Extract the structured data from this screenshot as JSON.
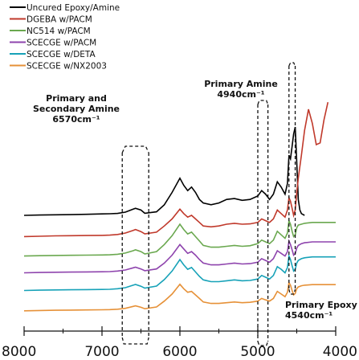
{
  "chart_data": {
    "type": "line",
    "title": "",
    "xlabel": "",
    "ylabel": "",
    "xlim": [
      8000,
      4000
    ],
    "x_reversed": true,
    "x_ticks": [
      "8000",
      "7000",
      "6000",
      "5000",
      "4000"
    ],
    "legend": {
      "placement": "top-left",
      "entries": [
        {
          "name": "Uncured Epoxy/Amine",
          "color": "#000000"
        },
        {
          "name": "DGEBA w/PACM",
          "color": "#c0392b"
        },
        {
          "name": "NC514 w/PACM",
          "color": "#6aa84f"
        },
        {
          "name": "SCECGE w/PACM",
          "color": "#8e44ad"
        },
        {
          "name": "SCECGE w/DETA",
          "color": "#17a2b8"
        },
        {
          "name": "SCECGE w/NX2003",
          "color": "#e69138"
        }
      ]
    },
    "annotations": [
      {
        "lines": [
          "Primary and",
          "Secondary Amine",
          "6570cm⁻¹"
        ],
        "region": [
          6740,
          6400
        ]
      },
      {
        "lines": [
          "Primary Amine",
          "4940cm⁻¹"
        ],
        "region": [
          5000,
          4850
        ]
      },
      {
        "lines": [
          "Primary Epoxy",
          "4540cm⁻¹"
        ],
        "region": [
          4600,
          4500
        ]
      }
    ],
    "series": [
      {
        "name": "Uncured Epoxy/Amine",
        "color": "#000000",
        "offset": 6,
        "x": [
          8000,
          7800,
          7600,
          7400,
          7200,
          7000,
          6900,
          6800,
          6700,
          6600,
          6570,
          6500,
          6450,
          6300,
          6200,
          6100,
          6000,
          5950,
          5900,
          5850,
          5800,
          5750,
          5700,
          5600,
          5500,
          5400,
          5300,
          5200,
          5100,
          5000,
          4950,
          4900,
          4850,
          4800,
          4750,
          4700,
          4650,
          4620,
          4600,
          4580,
          4560,
          4540,
          4520,
          4500,
          4480,
          4460,
          4440,
          4420,
          4400
        ],
        "y": [
          0,
          0.02,
          0.03,
          0.04,
          0.06,
          0.08,
          0.09,
          0.11,
          0.18,
          0.35,
          0.4,
          0.3,
          0.12,
          0.2,
          0.6,
          1.3,
          2.1,
          1.7,
          1.4,
          1.6,
          1.3,
          0.9,
          0.7,
          0.6,
          0.7,
          0.9,
          0.95,
          0.85,
          0.9,
          1.1,
          1.4,
          1.2,
          0.9,
          1.2,
          1.9,
          1.6,
          1.2,
          1.8,
          3.4,
          3.2,
          3.9,
          4.6,
          5.0,
          3.0,
          0.9,
          0.3,
          0.1,
          0.05,
          0.0
        ]
      },
      {
        "name": "DGEBA w/PACM",
        "color": "#c0392b",
        "offset": 4.8,
        "x": [
          8000,
          7800,
          7600,
          7400,
          7200,
          7000,
          6900,
          6800,
          6700,
          6600,
          6570,
          6500,
          6450,
          6300,
          6200,
          6100,
          6000,
          5950,
          5900,
          5850,
          5800,
          5750,
          5700,
          5600,
          5500,
          5400,
          5300,
          5200,
          5100,
          5000,
          4950,
          4900,
          4850,
          4800,
          4750,
          4700,
          4650,
          4620,
          4600,
          4580,
          4560,
          4540,
          4520,
          4500,
          4480,
          4440,
          4400,
          4350,
          4300,
          4250,
          4200,
          4150,
          4100
        ],
        "y": [
          0,
          0.02,
          0.04,
          0.05,
          0.06,
          0.07,
          0.08,
          0.12,
          0.2,
          0.35,
          0.4,
          0.28,
          0.15,
          0.25,
          0.6,
          1.0,
          1.55,
          1.3,
          1.1,
          1.2,
          1.0,
          0.8,
          0.6,
          0.55,
          0.6,
          0.7,
          0.75,
          0.7,
          0.72,
          0.8,
          1.0,
          0.9,
          0.8,
          1.0,
          1.5,
          1.3,
          1.1,
          1.5,
          2.2,
          2.0,
          1.6,
          1.2,
          1.5,
          2.5,
          3.3,
          4.6,
          6.0,
          7.2,
          6.4,
          5.2,
          5.3,
          6.6,
          7.6
        ]
      },
      {
        "name": "NC514 w/PACM",
        "color": "#6aa84f",
        "offset": 3.7,
        "x": [
          8000,
          7800,
          7600,
          7400,
          7200,
          7000,
          6900,
          6800,
          6700,
          6600,
          6570,
          6500,
          6450,
          6300,
          6200,
          6100,
          6000,
          5950,
          5900,
          5850,
          5800,
          5750,
          5700,
          5600,
          5500,
          5400,
          5300,
          5200,
          5100,
          5000,
          4950,
          4900,
          4850,
          4800,
          4750,
          4700,
          4650,
          4620,
          4600,
          4580,
          4560,
          4540,
          4520,
          4500,
          4480,
          4440,
          4400,
          4300,
          4200,
          4100,
          4000
        ],
        "y": [
          0,
          0.02,
          0.03,
          0.04,
          0.05,
          0.06,
          0.07,
          0.1,
          0.17,
          0.3,
          0.35,
          0.25,
          0.12,
          0.25,
          0.65,
          1.15,
          1.8,
          1.5,
          1.25,
          1.35,
          1.1,
          0.85,
          0.6,
          0.5,
          0.5,
          0.55,
          0.6,
          0.55,
          0.58,
          0.7,
          0.9,
          0.8,
          0.7,
          0.9,
          1.4,
          1.2,
          1.0,
          1.3,
          2.0,
          1.8,
          1.4,
          1.1,
          1.2,
          1.6,
          1.75,
          1.8,
          1.85,
          1.9,
          1.9,
          1.9,
          1.9
        ]
      },
      {
        "name": "SCECGE w/PACM",
        "color": "#8e44ad",
        "offset": 2.75,
        "x": [
          8000,
          7800,
          7600,
          7400,
          7200,
          7000,
          6900,
          6800,
          6700,
          6600,
          6570,
          6500,
          6450,
          6300,
          6200,
          6100,
          6000,
          5950,
          5900,
          5850,
          5800,
          5750,
          5700,
          5600,
          5500,
          5400,
          5300,
          5200,
          5100,
          5000,
          4950,
          4900,
          4850,
          4800,
          4750,
          4700,
          4650,
          4620,
          4600,
          4580,
          4560,
          4540,
          4520,
          4500,
          4480,
          4440,
          4400,
          4300,
          4200,
          4100,
          4000
        ],
        "y": [
          0,
          0.02,
          0.03,
          0.04,
          0.05,
          0.06,
          0.07,
          0.1,
          0.16,
          0.28,
          0.32,
          0.22,
          0.12,
          0.22,
          0.55,
          1.0,
          1.6,
          1.35,
          1.1,
          1.2,
          1.0,
          0.75,
          0.55,
          0.45,
          0.45,
          0.5,
          0.55,
          0.5,
          0.52,
          0.6,
          0.8,
          0.7,
          0.6,
          0.8,
          1.25,
          1.1,
          0.95,
          1.2,
          1.8,
          1.6,
          1.3,
          1.0,
          1.1,
          1.4,
          1.55,
          1.65,
          1.7,
          1.75,
          1.75,
          1.75,
          1.75
        ]
      },
      {
        "name": "SCECGE w/DETA",
        "color": "#17a2b8",
        "offset": 1.75,
        "x": [
          8000,
          7800,
          7600,
          7400,
          7200,
          7000,
          6900,
          6800,
          6700,
          6600,
          6570,
          6500,
          6450,
          6300,
          6200,
          6100,
          6000,
          5950,
          5900,
          5850,
          5800,
          5750,
          5700,
          5600,
          5500,
          5400,
          5300,
          5200,
          5100,
          5000,
          4950,
          4900,
          4850,
          4800,
          4750,
          4700,
          4650,
          4620,
          4600,
          4580,
          4560,
          4540,
          4520,
          4500,
          4480,
          4440,
          4400,
          4300,
          4200,
          4100,
          4000
        ],
        "y": [
          0,
          0.02,
          0.03,
          0.04,
          0.05,
          0.06,
          0.07,
          0.1,
          0.16,
          0.3,
          0.34,
          0.24,
          0.13,
          0.25,
          0.62,
          1.1,
          1.75,
          1.45,
          1.2,
          1.3,
          1.05,
          0.8,
          0.6,
          0.5,
          0.5,
          0.55,
          0.6,
          0.55,
          0.57,
          0.65,
          0.85,
          0.75,
          0.65,
          0.85,
          1.35,
          1.2,
          1.0,
          1.3,
          1.95,
          1.75,
          1.4,
          1.1,
          1.2,
          1.55,
          1.7,
          1.8,
          1.85,
          1.9,
          1.9,
          1.9,
          1.9
        ]
      },
      {
        "name": "SCECGE w/NX2003",
        "color": "#e69138",
        "offset": 0.6,
        "x": [
          8000,
          7800,
          7600,
          7400,
          7200,
          7000,
          6900,
          6800,
          6700,
          6600,
          6570,
          6500,
          6450,
          6300,
          6200,
          6100,
          6000,
          5950,
          5900,
          5850,
          5800,
          5750,
          5700,
          5600,
          5500,
          5400,
          5300,
          5200,
          5100,
          5000,
          4950,
          4900,
          4850,
          4800,
          4750,
          4700,
          4650,
          4620,
          4600,
          4580,
          4560,
          4540,
          4520,
          4500,
          4480,
          4440,
          4400,
          4300,
          4200,
          4100,
          4000
        ],
        "y": [
          0,
          0.02,
          0.03,
          0.04,
          0.05,
          0.06,
          0.07,
          0.09,
          0.14,
          0.25,
          0.28,
          0.2,
          0.12,
          0.22,
          0.55,
          0.95,
          1.5,
          1.25,
          1.05,
          1.1,
          0.9,
          0.7,
          0.5,
          0.42,
          0.42,
          0.46,
          0.5,
          0.46,
          0.48,
          0.55,
          0.7,
          0.62,
          0.55,
          0.7,
          1.1,
          0.95,
          0.8,
          1.05,
          1.6,
          1.45,
          1.15,
          0.9,
          0.98,
          1.25,
          1.35,
          1.42,
          1.45,
          1.48,
          1.48,
          1.48,
          1.48
        ]
      }
    ]
  }
}
